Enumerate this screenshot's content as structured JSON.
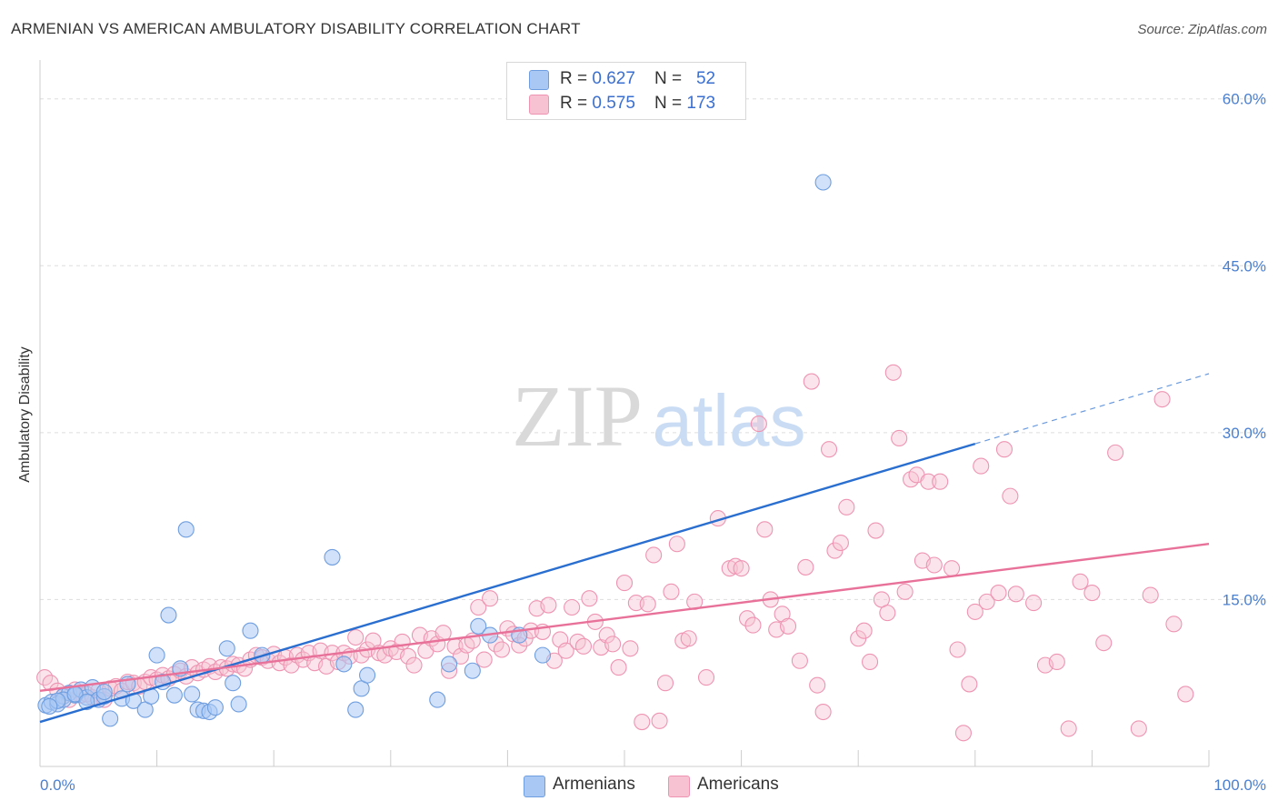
{
  "header": {
    "title": "ARMENIAN VS AMERICAN AMBULATORY DISABILITY CORRELATION CHART",
    "source": "Source: ZipAtlas.com"
  },
  "watermark": {
    "zip": "ZIP",
    "atlas": "atlas"
  },
  "legend_top": {
    "rows": [
      {
        "r_label": "R = ",
        "r_value": "0.627",
        "n_label": "N = ",
        "n_value": "52"
      },
      {
        "r_label": "R = ",
        "r_value": "0.575",
        "n_label": "N = ",
        "n_value": "173"
      }
    ]
  },
  "legend_bottom": {
    "items": [
      {
        "label": "Armenians"
      },
      {
        "label": "Americans"
      }
    ]
  },
  "colors": {
    "armenians_fill": "#aac8f4",
    "armenians_stroke": "#6f9ee0",
    "armenians_line": "#2a6fd0",
    "americans_fill": "#f7c3d3",
    "americans_stroke": "#ee94b2",
    "americans_line": "#e8719a",
    "tick_text": "#4a7fd0",
    "grid": "#dddddd"
  },
  "chart_data": {
    "type": "scatter",
    "title": "ARMENIAN VS AMERICAN AMBULATORY DISABILITY CORRELATION CHART",
    "xlabel": "",
    "ylabel": "Ambulatory Disability",
    "xlim": [
      0,
      100
    ],
    "ylim": [
      0,
      63
    ],
    "x_tick_labels": [
      "0.0%",
      "100.0%"
    ],
    "y_ticks": [
      15,
      30,
      45,
      60
    ],
    "y_tick_labels": [
      "15.0%",
      "30.0%",
      "45.0%",
      "60.0%"
    ],
    "grid": true,
    "legend_position": "top-center",
    "series": [
      {
        "name": "Armenians",
        "r": 0.627,
        "n": 52,
        "trend": {
          "x": [
            0,
            80
          ],
          "y": [
            4.0,
            29.0
          ],
          "dashed_to": {
            "x": 100,
            "y": 35.3
          }
        },
        "points": [
          [
            0.5,
            5.5
          ],
          [
            1,
            5.8
          ],
          [
            1.5,
            5.6
          ],
          [
            2,
            6.3
          ],
          [
            2.5,
            6.6
          ],
          [
            3,
            6.4
          ],
          [
            3.5,
            6.9
          ],
          [
            4,
            6.2
          ],
          [
            4.5,
            7.1
          ],
          [
            5,
            6.0
          ],
          [
            5.5,
            6.3
          ],
          [
            6,
            4.3
          ],
          [
            7,
            6.1
          ],
          [
            7.5,
            7.4
          ],
          [
            8,
            5.9
          ],
          [
            9,
            5.1
          ],
          [
            9.5,
            6.3
          ],
          [
            10,
            10.0
          ],
          [
            10.5,
            7.6
          ],
          [
            11,
            13.6
          ],
          [
            11.5,
            6.4
          ],
          [
            12,
            8.8
          ],
          [
            12.5,
            21.3
          ],
          [
            13,
            6.5
          ],
          [
            13.5,
            5.1
          ],
          [
            14,
            5.0
          ],
          [
            14.5,
            4.9
          ],
          [
            15,
            5.3
          ],
          [
            16,
            10.6
          ],
          [
            16.5,
            7.5
          ],
          [
            17,
            5.6
          ],
          [
            18,
            12.2
          ],
          [
            19,
            10.0
          ],
          [
            25,
            18.8
          ],
          [
            26,
            9.2
          ],
          [
            27,
            5.1
          ],
          [
            27.5,
            7.0
          ],
          [
            28,
            8.2
          ],
          [
            34,
            6.0
          ],
          [
            35,
            9.2
          ],
          [
            37,
            8.6
          ],
          [
            37.5,
            12.6
          ],
          [
            38.5,
            11.8
          ],
          [
            41,
            11.8
          ],
          [
            43,
            10.0
          ],
          [
            67,
            52.5
          ],
          [
            2,
            6.0
          ],
          [
            3,
            6.5
          ],
          [
            4,
            5.8
          ],
          [
            5.5,
            6.7
          ],
          [
            1.5,
            5.9
          ],
          [
            0.8,
            5.4
          ]
        ]
      },
      {
        "name": "Americans",
        "r": 0.575,
        "n": 173,
        "trend": {
          "x": [
            0,
            100
          ],
          "y": [
            6.8,
            20.0
          ]
        },
        "points": [
          [
            0.4,
            8.0
          ],
          [
            0.9,
            7.5
          ],
          [
            1.5,
            6.8
          ],
          [
            2,
            6.3
          ],
          [
            2.5,
            6.0
          ],
          [
            3,
            6.9
          ],
          [
            3.5,
            6.4
          ],
          [
            4,
            6.5
          ],
          [
            4.5,
            6.2
          ],
          [
            5,
            6.8
          ],
          [
            5.5,
            6.0
          ],
          [
            6,
            7.0
          ],
          [
            6.5,
            7.2
          ],
          [
            7,
            6.8
          ],
          [
            7.5,
            7.6
          ],
          [
            8,
            7.5
          ],
          [
            8.5,
            7.2
          ],
          [
            9,
            7.6
          ],
          [
            9.5,
            8.0
          ],
          [
            10,
            7.8
          ],
          [
            10.5,
            8.2
          ],
          [
            11,
            7.9
          ],
          [
            11.5,
            8.3
          ],
          [
            12,
            8.6
          ],
          [
            12.5,
            8.1
          ],
          [
            13,
            8.9
          ],
          [
            13.5,
            8.4
          ],
          [
            14,
            8.7
          ],
          [
            14.5,
            9.0
          ],
          [
            15,
            8.5
          ],
          [
            15.5,
            8.9
          ],
          [
            16,
            8.8
          ],
          [
            16.5,
            9.2
          ],
          [
            17,
            9.1
          ],
          [
            17.5,
            8.8
          ],
          [
            18,
            9.6
          ],
          [
            18.5,
            10.0
          ],
          [
            19,
            9.8
          ],
          [
            19.5,
            9.5
          ],
          [
            20,
            10.1
          ],
          [
            20.5,
            9.3
          ],
          [
            21,
            9.8
          ],
          [
            21.5,
            9.1
          ],
          [
            22,
            10.0
          ],
          [
            22.5,
            9.6
          ],
          [
            23,
            10.2
          ],
          [
            23.5,
            9.3
          ],
          [
            24,
            10.4
          ],
          [
            24.5,
            9.0
          ],
          [
            25,
            10.2
          ],
          [
            25.5,
            9.4
          ],
          [
            26,
            10.2
          ],
          [
            26.5,
            9.9
          ],
          [
            27,
            11.6
          ],
          [
            27.5,
            10.0
          ],
          [
            28,
            10.5
          ],
          [
            28.5,
            11.3
          ],
          [
            29,
            10.2
          ],
          [
            29.5,
            10.0
          ],
          [
            30,
            10.6
          ],
          [
            30.5,
            10.3
          ],
          [
            31,
            11.2
          ],
          [
            31.5,
            9.9
          ],
          [
            32,
            9.1
          ],
          [
            32.5,
            11.8
          ],
          [
            33,
            10.4
          ],
          [
            33.5,
            11.5
          ],
          [
            34,
            11.0
          ],
          [
            34.5,
            12.0
          ],
          [
            35,
            8.6
          ],
          [
            35.5,
            10.8
          ],
          [
            36,
            9.9
          ],
          [
            36.5,
            10.9
          ],
          [
            37,
            11.3
          ],
          [
            37.5,
            14.3
          ],
          [
            38,
            9.6
          ],
          [
            38.5,
            15.1
          ],
          [
            39,
            11.0
          ],
          [
            39.5,
            10.5
          ],
          [
            40,
            12.4
          ],
          [
            40.5,
            11.9
          ],
          [
            41,
            10.9
          ],
          [
            41.5,
            11.5
          ],
          [
            42,
            12.2
          ],
          [
            42.5,
            14.2
          ],
          [
            43,
            12.1
          ],
          [
            43.5,
            14.5
          ],
          [
            44,
            9.5
          ],
          [
            44.5,
            11.4
          ],
          [
            45,
            10.4
          ],
          [
            45.5,
            14.3
          ],
          [
            46,
            11.2
          ],
          [
            46.5,
            10.8
          ],
          [
            47,
            15.1
          ],
          [
            47.5,
            13.0
          ],
          [
            48,
            10.7
          ],
          [
            48.5,
            11.8
          ],
          [
            49,
            11.0
          ],
          [
            49.5,
            8.9
          ],
          [
            50,
            16.5
          ],
          [
            50.5,
            10.6
          ],
          [
            51,
            14.7
          ],
          [
            51.5,
            4.0
          ],
          [
            52,
            14.6
          ],
          [
            52.5,
            19.0
          ],
          [
            53,
            4.1
          ],
          [
            53.5,
            7.5
          ],
          [
            54,
            15.7
          ],
          [
            54.5,
            20.0
          ],
          [
            55,
            11.3
          ],
          [
            55.5,
            11.5
          ],
          [
            56,
            14.8
          ],
          [
            57,
            8.0
          ],
          [
            58,
            22.3
          ],
          [
            59,
            17.8
          ],
          [
            59.5,
            18.0
          ],
          [
            60,
            17.8
          ],
          [
            60.5,
            13.3
          ],
          [
            61,
            12.7
          ],
          [
            61.5,
            30.8
          ],
          [
            62,
            21.3
          ],
          [
            62.5,
            15.0
          ],
          [
            63,
            12.3
          ],
          [
            63.5,
            13.7
          ],
          [
            64,
            12.6
          ],
          [
            65,
            9.5
          ],
          [
            65.5,
            17.9
          ],
          [
            66,
            34.6
          ],
          [
            66.5,
            7.3
          ],
          [
            67,
            4.9
          ],
          [
            67.5,
            28.5
          ],
          [
            68,
            19.4
          ],
          [
            68.5,
            20.1
          ],
          [
            69,
            23.3
          ],
          [
            70,
            11.5
          ],
          [
            70.5,
            12.2
          ],
          [
            71,
            9.4
          ],
          [
            71.5,
            21.2
          ],
          [
            72,
            15.0
          ],
          [
            72.5,
            13.8
          ],
          [
            73,
            35.4
          ],
          [
            73.5,
            29.5
          ],
          [
            74,
            15.7
          ],
          [
            74.5,
            25.8
          ],
          [
            75,
            26.2
          ],
          [
            75.5,
            18.5
          ],
          [
            76,
            25.6
          ],
          [
            76.5,
            18.1
          ],
          [
            77,
            25.6
          ],
          [
            78,
            17.8
          ],
          [
            78.5,
            10.5
          ],
          [
            79,
            3.0
          ],
          [
            79.5,
            7.4
          ],
          [
            80,
            13.9
          ],
          [
            80.5,
            27.0
          ],
          [
            81,
            14.8
          ],
          [
            82,
            15.6
          ],
          [
            82.5,
            28.5
          ],
          [
            83,
            24.3
          ],
          [
            83.5,
            15.5
          ],
          [
            85,
            14.7
          ],
          [
            86,
            9.1
          ],
          [
            87,
            9.4
          ],
          [
            88,
            3.4
          ],
          [
            89,
            16.6
          ],
          [
            90,
            15.6
          ],
          [
            91,
            11.1
          ],
          [
            92,
            28.2
          ],
          [
            94,
            3.4
          ],
          [
            95,
            15.4
          ],
          [
            96,
            33.0
          ],
          [
            97,
            12.8
          ],
          [
            98,
            6.5
          ]
        ]
      }
    ]
  }
}
